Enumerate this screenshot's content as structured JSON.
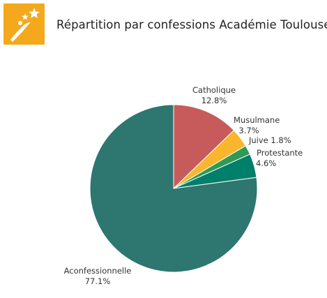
{
  "header": {
    "title": "Répartition par confessions Académie Toulouse",
    "logo_color": "#f5a81c"
  },
  "chart_data": {
    "type": "pie",
    "title": "Répartition par confessions Académie Toulouse",
    "start": "top",
    "direction": "clockwise",
    "slices": [
      {
        "label": "Catholique",
        "value": 12.8,
        "value_label": "12.8%",
        "color": "#c75b5b"
      },
      {
        "label": "Musulmane",
        "value": 3.7,
        "value_label": "3.7%",
        "color": "#f8b62d"
      },
      {
        "label": "Juive",
        "value": 1.8,
        "value_label": "1.8%",
        "color": "#2e9a56"
      },
      {
        "label": "Protestante",
        "value": 4.6,
        "value_label": "4.6%",
        "color": "#007f6a"
      },
      {
        "label": "Aconfessionnelle",
        "value": 77.1,
        "value_label": "77.1%",
        "color": "#2e7670"
      }
    ]
  }
}
